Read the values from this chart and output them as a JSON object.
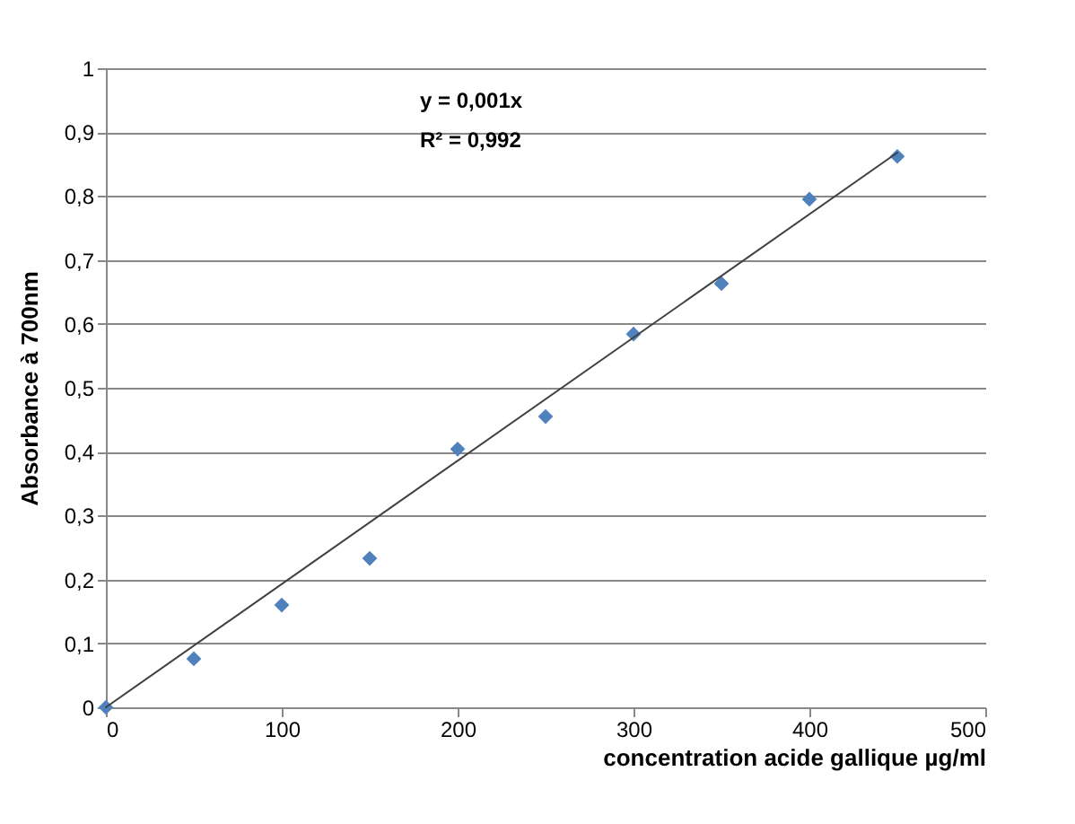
{
  "chart_data": {
    "type": "scatter",
    "xlabel": "concentration acide gallique  µg/ml",
    "ylabel": "Absorbance à 700nm",
    "annotations": [
      "y = 0,001x",
      "R² = 0,992"
    ],
    "x": [
      0,
      50,
      100,
      150,
      200,
      250,
      300,
      350,
      400,
      450
    ],
    "series": [
      {
        "color": "#4f81bd",
        "marker": "diamond",
        "values": [
          0,
          0.076,
          0.16,
          0.233,
          0.404,
          0.455,
          0.584,
          0.663,
          0.795,
          0.862
        ]
      },
      {
        "type": "line",
        "color": "#404040",
        "marker": "none",
        "x": [
          0,
          450
        ],
        "values": [
          0,
          0.868
        ]
      }
    ],
    "xlim": [
      0,
      500
    ],
    "xticks": [
      0,
      100,
      200,
      300,
      400,
      500
    ],
    "ylim": [
      0,
      1
    ],
    "yticks": [
      0,
      {
        "value": 0.1,
        "label": "0,1"
      },
      {
        "value": 0.2,
        "label": "0,2"
      },
      {
        "value": 0.3,
        "label": "0,3"
      },
      {
        "value": 0.4,
        "label": "0,4"
      },
      {
        "value": 0.5,
        "label": "0,5"
      },
      {
        "value": 0.6,
        "label": "0,6"
      },
      {
        "value": 0.7,
        "label": "0,7"
      },
      {
        "value": 0.8,
        "label": "0,8"
      },
      {
        "value": 0.9,
        "label": "0,9"
      },
      1
    ],
    "grid": "y"
  }
}
